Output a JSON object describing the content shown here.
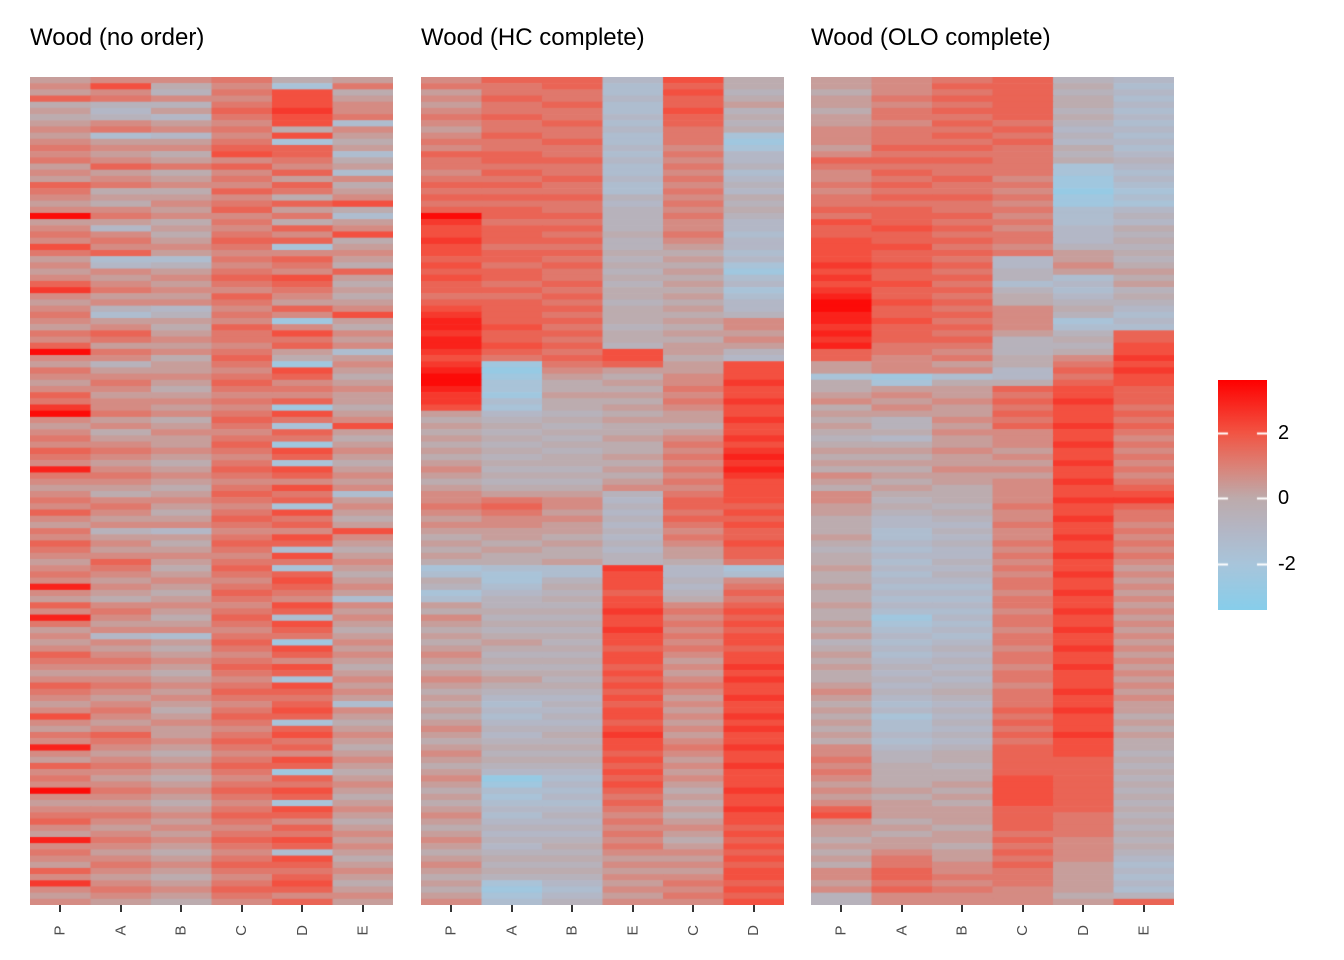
{
  "chart_data": {
    "type": "heatmap",
    "n_rows": 134,
    "n_cols": 6,
    "background": "#ffffff",
    "title_color": "#000000",
    "axis_label_color": "#4d4d4d",
    "tick_color": "#333333",
    "cell_encoding": {
      "chars": "0123456789abcdef",
      "min_value": -3.2,
      "step": 0.44
    },
    "colormap": {
      "domain": [
        -3.4,
        3.6
      ],
      "anchors": [
        {
          "v": -3.4,
          "color": "#87CEEB"
        },
        {
          "v": -2.0,
          "color": "#A8C5DB"
        },
        {
          "v": -1.0,
          "color": "#B3B7C6"
        },
        {
          "v": 0.0,
          "color": "#BDABAC"
        },
        {
          "v": 1.0,
          "color": "#DC8176"
        },
        {
          "v": 2.0,
          "color": "#F25443"
        },
        {
          "v": 3.6,
          "color": "#FF0000"
        }
      ]
    },
    "legend": {
      "ticks": [
        {
          "label": "2",
          "value": 2
        },
        {
          "label": "0",
          "value": 0
        },
        {
          "label": "-2",
          "value": -2
        }
      ],
      "tick_mark_color": "#ffffff"
    },
    "panels": [
      {
        "title": "Wood (no order)",
        "x_labels": [
          "P",
          "A",
          "B",
          "C",
          "D",
          "E"
        ],
        "rows_hex": [
          "899a78",
          "9c793a",
          "896ac7",
          "ba99c8",
          "766ac9",
          "858bd9",
          "765aca",
          "8989c4",
          "9a9a79",
          "8459c8",
          "988a37",
          "a99bb8",
          "987cb4",
          "a989a7",
          "8bab98",
          "9879b4",
          "898a89",
          "ba99b7",
          "a77ba8",
          "988979",
          "879abc",
          "998b87",
          "fa99a4",
          "887a78",
          "9589b9",
          "a97a9c",
          "9a8bb7",
          "c99a38",
          "ab8999",
          "844ab8",
          "9569a7",
          "898a9b",
          "989bc8",
          "b98ab7",
          "da99a8",
          "988b97",
          "899a88",
          "9659b9",
          "a46a9c",
          "988928",
          "897b97",
          "ab8ac9",
          "9a9aa8",
          "b889b9",
          "fa9a84",
          "997b78",
          "868a29",
          "a889c8",
          "999ab7",
          "8a8b98",
          "997aa9",
          "b88998",
          "a99ab8",
          "d98927",
          "fa9ac8",
          "987ba9",
          "898a3c",
          "9799b8",
          "a88aa7",
          "998b28",
          "ba9ac9",
          "a989b8",
          "987a37",
          "e98bc8",
          "aa9ab9",
          "998998",
          "887ac9",
          "978ba4",
          "a99ab8",
          "9a8939",
          "b97ac8",
          "988ba7",
          "899ab8",
          "a6599c",
          "988ac9",
          "b97bb8",
          "a88a47",
          "9999c8",
          "8b8aa9",
          "9a7b38",
          "a98ab7",
          "9899c8",
          "e98ab9",
          "987ba8",
          "878a94",
          "b999c9",
          "9a8ab8",
          "e97b49",
          "a88ac8",
          "8999b7",
          "954aa8",
          "898b29",
          "987ac8",
          "b989b9",
          "aa9a98",
          "998bc7",
          "887ab8",
          "998939",
          "ba9ac8",
          "a98bb9",
          "989aa8",
          "8989b4",
          "9a7ac9",
          "c98bb8",
          "989a37",
          "8989b8",
          "ab8ac9",
          "9a9ba8",
          "e98ab7",
          "987998",
          "898ac9",
          "ba9bb8",
          "998a27",
          "a879b8",
          "998aa9",
          "fa9bc8",
          "998ab7",
          "887938",
          "998ac9",
          "aa9bb8",
          "b98a97",
          "9899b8",
          "898aa9",
          "ea9bc8",
          "998ab9",
          "a87948",
          "998ac7",
          "8a9bb8",
          "b98aa9",
          "9879b8",
          "d98ac7",
          "9a9bb8",
          "898a99",
          "9879b8"
        ]
      },
      {
        "title": "Wood (HC complete)",
        "x_labels": [
          "P",
          "A",
          "B",
          "E",
          "C",
          "D"
        ],
        "rows_hex": [
          "9bb5c7",
          "aab4b7",
          "8aa4c6",
          "9ba5b7",
          "8ab4b8",
          "9aa4c6",
          "aba5b7",
          "9ab4b6",
          "8aa5a7",
          "9ba4a3",
          "aab4a2",
          "9aa593",
          "bba4a5",
          "abb595",
          "aaa4a6",
          "9ba494",
          "aab5a5",
          "bba496",
          "aaa4a5",
          "bbb697",
          "aaa5a6",
          "bba697",
          "fbb6a6",
          "daa695",
          "cbb695",
          "cba7a4",
          "dbb695",
          "caa685",
          "cbb774",
          "bba685",
          "cab773",
          "bba682",
          "cba774",
          "bab685",
          "bba773",
          "aab784",
          "bba675",
          "cbb785",
          "dba776",
          "ebb789",
          "eca679",
          "dbb788",
          "eba779",
          "ecb688",
          "dbac86",
          "cabc75",
          "d2ab8c",
          "e1988c",
          "f2879c",
          "f3789d",
          "e377ac",
          "d2889c",
          "d477ad",
          "c3789c",
          "85678c",
          "76788d",
          "87677c",
          "76778c",
          "87689d",
          "7677ac",
          "87679d",
          "7678ae",
          "87779d",
          "9668ae",
          "87779d",
          "7668ac",
          "87799c",
          "9886ac",
          "9a95bc",
          "ab96bb",
          "9a85ac",
          "8996bb",
          "9985ac",
          "88869b",
          "7875ab",
          "87869c",
          "78758b",
          "87768b",
          "77867a",
          "344d53",
          "434c54",
          "736c69",
          "647c5a",
          "356b6b",
          "467c7a",
          "866c9b",
          "777dac",
          "966c9b",
          "877cac",
          "766d9b",
          "877cac",
          "786c9c",
          "877bab",
          "966c9c",
          "877c8c",
          "766b9d",
          "877c8c",
          "986b9d",
          "877cac",
          "766b9c",
          "855c8d",
          "746b9c",
          "855c8c",
          "746c9d",
          "855b8c",
          "966c9d",
          "857d8c",
          "766c9c",
          "877cad",
          "966b9c",
          "877c8c",
          "766b9d",
          "855c8c",
          "914b9c",
          "825c8c",
          "744b7d",
          "835a8c",
          "744b7c",
          "855a8d",
          "94697c",
          "855a8c",
          "76699b",
          "855a8c",
          "96697b",
          "857a8c",
          "76699b",
          "87788c",
          "96699b",
          "87788c",
          "76699c",
          "8358ab",
          "72499c",
          "8358ab",
          "94699c"
        ]
      },
      {
        "title": "Wood (OLO complete)",
        "x_labels": [
          "P",
          "A",
          "B",
          "C",
          "D",
          "E"
        ],
        "rows_hex": [
          "89ab65",
          "89bb74",
          "79ab65",
          "8abb74",
          "89ab75",
          "7abb64",
          "8aab75",
          "89ba64",
          "9aab55",
          "9aba64",
          "9aab55",
          "8bba74",
          "9aaa65",
          "bbba76",
          "aaaa35",
          "9baa34",
          "9ab925",
          "abaa24",
          "9aa913",
          "abba24",
          "aaa923",
          "bbaa45",
          "abb946",
          "cbaa45",
          "bcb957",
          "bbaa56",
          "cbba57",
          "cca966",
          "cbba87",
          "cba586",
          "dcb597",
          "cba688",
          "dbb647",
          "cca458",
          "dbb646",
          "eba757",
          "fcb766",
          "fba975",
          "ebb964",
          "eca935",
          "dbb944",
          "eba86b",
          "dbb67b",
          "eaa66c",
          "ba967c",
          "b9a79d",
          "8987ac",
          "8995bd",
          "3245ac",
          "7377bc",
          "788bcb",
          "898acb",
          "989bdb",
          "798aca",
          "888bcb",
          "769aca",
          "868bdb",
          "7799ca",
          "6589c9",
          "7789da",
          "8898c9",
          "7789ca",
          "8888d9",
          "7799ca",
          "9888c9",
          "8789da",
          "7879cb",
          "9779cc",
          "9679dd",
          "876acb",
          "8679ca",
          "7569da",
          "755ac9",
          "7469ca",
          "8459d9",
          "756aca",
          "6459c9",
          "755ada",
          "7469c9",
          "855ac8",
          "7469d9",
          "755ac8",
          "844ac9",
          "7559d8",
          "744ac9",
          "855ac8",
          "7449d9",
          "725ac8",
          "834ac9",
          "7459d8",
          "854ac9",
          "645ac8",
          "7569d9",
          "845ac8",
          "756ac9",
          "8659d8",
          "756ac9",
          "765ac8",
          "8569c9",
          "967ad8",
          "856ac9",
          "745ac8",
          "856bd8",
          "735ac7",
          "846bc8",
          "745ac7",
          "856bd8",
          "745ac7",
          "956bc7",
          "967bc6",
          "a67bb7",
          "976bb6",
          "a77bb7",
          "977cb6",
          "878cb7",
          "987cb6",
          "878cb7",
          "987cb6",
          "b88bb7",
          "c88ba6",
          "978ba7",
          "887ba6",
          "878aa7",
          "788b96",
          "887a97",
          "798b96",
          "8a8a95",
          "7a9b84",
          "9b9a85",
          "9baa84",
          "8a9a85",
          "9ba984",
          "699976",
          "69998b"
        ]
      }
    ]
  }
}
